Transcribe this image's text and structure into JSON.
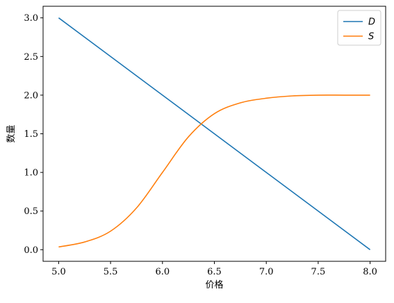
{
  "chart_data": {
    "type": "line",
    "xlabel": "价格",
    "ylabel": "数量",
    "xlim": [
      4.85,
      8.15
    ],
    "ylim": [
      -0.15,
      3.15
    ],
    "xticks": [
      5.0,
      5.5,
      6.0,
      6.5,
      7.0,
      7.5,
      8.0
    ],
    "yticks": [
      0.0,
      0.5,
      1.0,
      1.5,
      2.0,
      2.5,
      3.0
    ],
    "xtick_labels": [
      "5.0",
      "5.5",
      "6.0",
      "6.5",
      "7.0",
      "7.5",
      "8.0"
    ],
    "ytick_labels": [
      "0.0",
      "0.5",
      "1.0",
      "1.5",
      "2.0",
      "2.5",
      "3.0"
    ],
    "legend_position": "top-right",
    "grid": false,
    "series": [
      {
        "name": "D",
        "color": "#1f77b4",
        "x": [
          5.0,
          8.0
        ],
        "y": [
          3.0,
          0.0
        ]
      },
      {
        "name": "S",
        "color": "#ff7f0e",
        "x": [
          5.0,
          5.25,
          5.5,
          5.75,
          6.0,
          6.25,
          6.5,
          6.75,
          7.0,
          7.25,
          7.5,
          7.75,
          8.0
        ],
        "y": [
          0.036,
          0.1,
          0.24,
          0.54,
          1.0,
          1.46,
          1.76,
          1.9,
          1.96,
          1.99,
          2.0,
          2.0,
          2.0
        ]
      }
    ]
  }
}
